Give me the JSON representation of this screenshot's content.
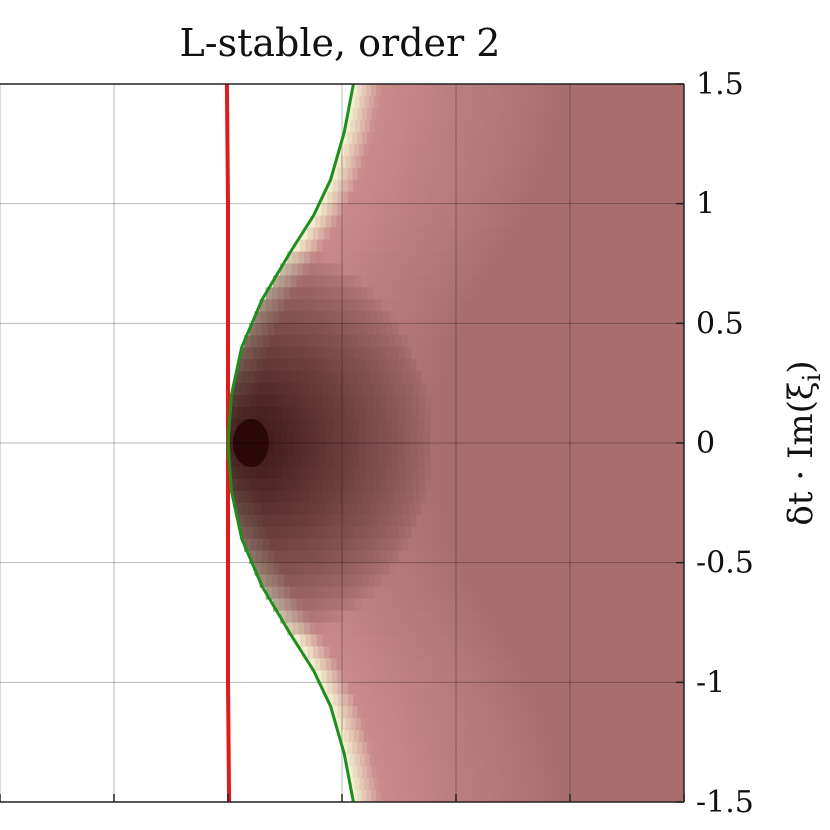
{
  "chart_data": {
    "type": "heatmap",
    "title": "L-stable, order 2",
    "ylabel": "δt · Im(ξ_i)",
    "ylabel_parts": {
      "prefix": "δt · Im(ξ",
      "subscript": "i",
      "suffix": ")"
    },
    "ylim": [
      -1.5,
      1.5
    ],
    "yticks": [
      1.5,
      1,
      0.5,
      0,
      -0.5,
      -1,
      -1.5
    ],
    "ytick_labels": [
      "1.5",
      "1",
      "0.5",
      "0",
      "-0.5",
      "-1",
      "-1.5"
    ],
    "ytick_side": "right",
    "xlim": [
      -2,
      4
    ],
    "xticks": [
      -2,
      -1,
      0,
      1,
      2,
      3,
      4
    ],
    "xtick_labels_visible": false,
    "grid": true,
    "colormap": {
      "low": "#3a1414",
      "mid": "#c98a8a",
      "high_edge": "#f8f7d6",
      "far": "#a86e6e"
    },
    "dark_center": [
      0.2,
      0
    ],
    "series": [
      {
        "name": "red boundary",
        "color": "#e31a1c",
        "x": [
          -0.01,
          0.0,
          0.0,
          0.0,
          0.0,
          0.0,
          0.0,
          0.01
        ],
        "y": [
          1.5,
          1.0,
          0.5,
          0.1,
          -0.1,
          -0.5,
          -1.0,
          -1.5
        ]
      },
      {
        "name": "green boundary",
        "color": "#1e8f1e",
        "x": [
          1.1,
          1.02,
          0.9,
          0.75,
          0.55,
          0.3,
          0.12,
          0.03,
          0.0,
          0.03,
          0.12,
          0.3,
          0.55,
          0.75,
          0.9,
          1.02,
          1.1
        ],
        "y": [
          1.5,
          1.3,
          1.1,
          0.95,
          0.8,
          0.6,
          0.4,
          0.2,
          0.0,
          -0.2,
          -0.4,
          -0.6,
          -0.8,
          -0.95,
          -1.1,
          -1.3,
          -1.5
        ]
      }
    ]
  }
}
